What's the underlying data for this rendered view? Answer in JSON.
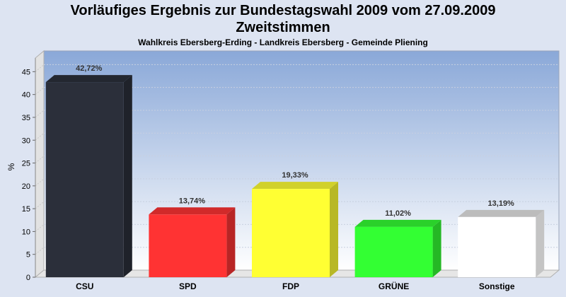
{
  "header": {
    "title_line1": "Vorläufiges Ergebnis zur Bundestagswahl 2009 vom 27.09.2009",
    "title_line2": "Zweitstimmen",
    "subtitle": "Wahlkreis Ebersberg-Erding - Landkreis Ebersberg - Gemeinde Pliening"
  },
  "chart_data": {
    "type": "bar",
    "title": "Vorläufiges Ergebnis zur Bundestagswahl 2009 vom 27.09.2009 Zweitstimmen",
    "subtitle": "Wahlkreis Ebersberg-Erding - Landkreis Ebersberg - Gemeinde Pliening",
    "ylabel": "%",
    "xlabel": "",
    "ylim": [
      0,
      48
    ],
    "yticks": [
      0,
      5,
      10,
      15,
      20,
      25,
      30,
      35,
      40,
      45
    ],
    "grid": true,
    "categories": [
      "CSU",
      "SPD",
      "FDP",
      "GRÜNE",
      "Sonstige"
    ],
    "values": [
      42.72,
      13.74,
      19.33,
      11.02,
      13.19
    ],
    "value_labels": [
      "42,72%",
      "13,74%",
      "19,33%",
      "11,02%",
      "13,19%"
    ],
    "colors": [
      "#2b2f3a",
      "#ff3333",
      "#ffff33",
      "#33ff33",
      "#ffffff"
    ]
  }
}
